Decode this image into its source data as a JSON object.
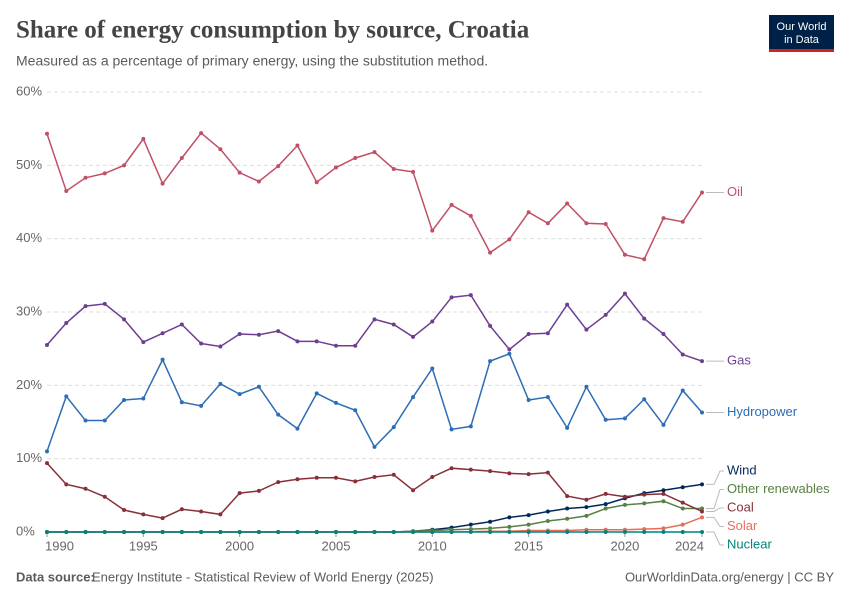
{
  "chart_data": {
    "type": "line",
    "title": "Share of energy consumption by source, Croatia",
    "subtitle": "Measured as a percentage of primary energy, using the substitution method.",
    "logo": [
      "Our World",
      "in Data"
    ],
    "source_label": "Data source:",
    "source": "Energy Institute - Statistical Review of World Energy (2025)",
    "credit": "OurWorldinData.org/energy | CC BY",
    "x": [
      1990,
      1991,
      1992,
      1993,
      1994,
      1995,
      1996,
      1997,
      1998,
      1999,
      2000,
      2001,
      2002,
      2003,
      2004,
      2005,
      2006,
      2007,
      2008,
      2009,
      2010,
      2011,
      2012,
      2013,
      2014,
      2015,
      2016,
      2017,
      2018,
      2019,
      2020,
      2021,
      2022,
      2023,
      2024
    ],
    "xlim": [
      1990,
      2024
    ],
    "xticks": [
      1990,
      1995,
      2000,
      2005,
      2010,
      2015,
      2020,
      2024
    ],
    "ylim": [
      0,
      60
    ],
    "yticks": [
      {
        "value": 0,
        "label": "0%"
      },
      {
        "value": 10,
        "label": "10%"
      },
      {
        "value": 20,
        "label": "20%"
      },
      {
        "value": 30,
        "label": "30%"
      },
      {
        "value": 40,
        "label": "40%"
      },
      {
        "value": 50,
        "label": "50%"
      },
      {
        "value": 60,
        "label": "60%"
      }
    ],
    "grid": true,
    "series": [
      {
        "name": "Oil",
        "color": "#c15065",
        "values": [
          54.3,
          46.5,
          48.3,
          48.9,
          50.0,
          53.6,
          47.5,
          51.0,
          54.4,
          52.2,
          49.0,
          47.8,
          49.9,
          52.7,
          47.7,
          49.7,
          51.0,
          51.8,
          49.5,
          49.1,
          41.1,
          44.6,
          43.1,
          38.1,
          39.9,
          43.6,
          42.1,
          44.8,
          42.1,
          42.0,
          37.8,
          37.2,
          42.8,
          42.3,
          46.3
        ]
      },
      {
        "name": "Gas",
        "color": "#6d3e91",
        "values": [
          25.5,
          28.5,
          30.8,
          31.1,
          29.0,
          25.9,
          27.1,
          28.3,
          25.7,
          25.3,
          27.0,
          26.9,
          27.4,
          26.0,
          26.0,
          25.4,
          25.4,
          29.0,
          28.3,
          26.6,
          28.7,
          32.0,
          32.3,
          28.1,
          24.9,
          27.0,
          27.1,
          31.0,
          27.6,
          29.6,
          32.5,
          29.1,
          27.0,
          24.2,
          23.3
        ]
      },
      {
        "name": "Hydropower",
        "color": "#2c6eb5",
        "values": [
          11.0,
          18.5,
          15.2,
          15.2,
          18.0,
          18.2,
          23.5,
          17.7,
          17.2,
          20.2,
          18.8,
          19.8,
          16.0,
          14.1,
          18.9,
          17.6,
          16.6,
          11.6,
          14.3,
          18.4,
          22.3,
          14.0,
          14.4,
          23.3,
          24.3,
          18.0,
          18.4,
          14.2,
          19.8,
          15.3,
          15.5,
          18.1,
          14.6,
          19.3,
          16.3
        ]
      },
      {
        "name": "Wind",
        "color": "#00295b",
        "values": [
          0,
          0,
          0,
          0,
          0,
          0,
          0,
          0,
          0,
          0,
          0,
          0,
          0,
          0,
          0,
          0,
          0,
          0,
          0,
          0.1,
          0.3,
          0.6,
          1.0,
          1.4,
          2.0,
          2.3,
          2.8,
          3.2,
          3.4,
          3.8,
          4.6,
          5.3,
          5.7,
          6.1,
          6.5
        ]
      },
      {
        "name": "Other renewables",
        "color": "#578145",
        "values": [
          0,
          0,
          0,
          0,
          0,
          0,
          0,
          0,
          0,
          0,
          0,
          0,
          0,
          0,
          0,
          0,
          0,
          0,
          0,
          0.1,
          0.2,
          0.3,
          0.4,
          0.5,
          0.7,
          1.0,
          1.5,
          1.8,
          2.2,
          3.2,
          3.7,
          3.9,
          4.2,
          3.2,
          3.2
        ]
      },
      {
        "name": "Coal",
        "color": "#883039",
        "values": [
          9.4,
          6.5,
          5.9,
          4.8,
          3.0,
          2.4,
          1.9,
          3.1,
          2.8,
          2.4,
          5.3,
          5.6,
          6.8,
          7.2,
          7.4,
          7.4,
          6.9,
          7.5,
          7.8,
          5.7,
          7.5,
          8.7,
          8.5,
          8.3,
          8.0,
          7.9,
          8.1,
          4.9,
          4.4,
          5.2,
          4.8,
          5.1,
          5.2,
          4.0,
          2.8
        ]
      },
      {
        "name": "Solar",
        "color": "#e56e5a",
        "values": [
          0,
          0,
          0,
          0,
          0,
          0,
          0,
          0,
          0,
          0,
          0,
          0,
          0,
          0,
          0,
          0,
          0,
          0,
          0,
          0,
          0,
          0,
          0.05,
          0.1,
          0.1,
          0.2,
          0.2,
          0.2,
          0.3,
          0.3,
          0.3,
          0.4,
          0.5,
          1.0,
          2.0
        ]
      },
      {
        "name": "Nuclear",
        "color": "#00847e",
        "values": [
          0,
          0,
          0,
          0,
          0,
          0,
          0,
          0,
          0,
          0,
          0,
          0,
          0,
          0,
          0,
          0,
          0,
          0,
          0,
          0,
          0,
          0,
          0,
          0,
          0,
          0,
          0,
          0,
          0,
          0,
          0,
          0,
          0,
          0,
          0
        ]
      }
    ]
  }
}
